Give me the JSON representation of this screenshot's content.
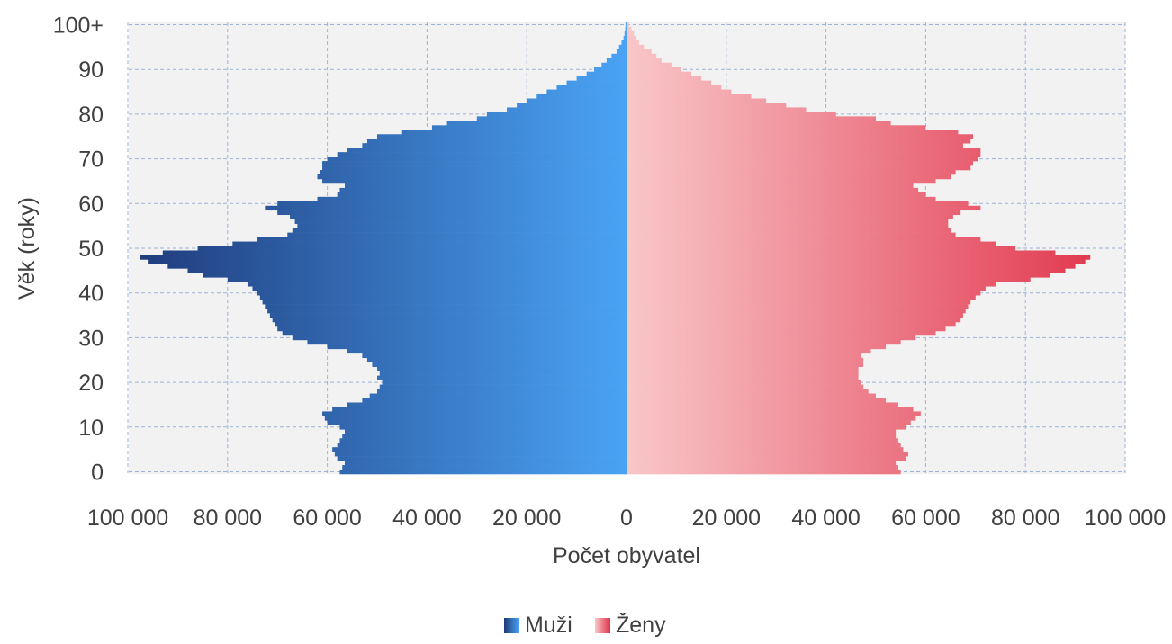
{
  "chart_data": {
    "type": "bar",
    "orientation": "horizontal",
    "subtype": "population-pyramid",
    "title": "",
    "xlabel": "Počet obyvatel",
    "ylabel": "Věk (roky)",
    "xlim": [
      -100000,
      100000
    ],
    "ylim": [
      0,
      100
    ],
    "x_tick_values": [
      -100000,
      -80000,
      -60000,
      -40000,
      -20000,
      0,
      20000,
      40000,
      60000,
      80000,
      100000
    ],
    "x_tick_labels": [
      "100 000",
      "80 000",
      "60 000",
      "40 000",
      "20 000",
      "0",
      "20 000",
      "40 000",
      "60 000",
      "80 000",
      "100 000"
    ],
    "y_tick_values": [
      0,
      10,
      20,
      30,
      40,
      50,
      60,
      70,
      80,
      90,
      100
    ],
    "y_tick_labels": [
      "0",
      "10",
      "20",
      "30",
      "40",
      "50",
      "60",
      "70",
      "80",
      "90",
      "100+"
    ],
    "grid": true,
    "legend_position": "bottom-center",
    "ages": [
      0,
      1,
      2,
      3,
      4,
      5,
      6,
      7,
      8,
      9,
      10,
      11,
      12,
      13,
      14,
      15,
      16,
      17,
      18,
      19,
      20,
      21,
      22,
      23,
      24,
      25,
      26,
      27,
      28,
      29,
      30,
      31,
      32,
      33,
      34,
      35,
      36,
      37,
      38,
      39,
      40,
      41,
      42,
      43,
      44,
      45,
      46,
      47,
      48,
      49,
      50,
      51,
      52,
      53,
      54,
      55,
      56,
      57,
      58,
      59,
      60,
      61,
      62,
      63,
      64,
      65,
      66,
      67,
      68,
      69,
      70,
      71,
      72,
      73,
      74,
      75,
      76,
      77,
      78,
      79,
      80,
      81,
      82,
      83,
      84,
      85,
      86,
      87,
      88,
      89,
      90,
      91,
      92,
      93,
      94,
      95,
      96,
      97,
      98,
      99,
      100
    ],
    "series": [
      {
        "name": "Muži",
        "color_dark": "#1f3a7a",
        "color_light": "#4aa3f5",
        "values": [
          57500,
          57000,
          56500,
          58000,
          58500,
          59000,
          58000,
          57500,
          57000,
          56500,
          57500,
          60000,
          60500,
          61000,
          59000,
          56000,
          53000,
          51500,
          50000,
          49500,
          49000,
          50000,
          49500,
          50000,
          51000,
          52000,
          53000,
          56000,
          60000,
          64000,
          67000,
          69000,
          70000,
          70500,
          71000,
          71500,
          72000,
          72500,
          73000,
          73500,
          74000,
          75000,
          76000,
          80000,
          85000,
          88000,
          92000,
          96000,
          97500,
          93000,
          86000,
          79000,
          74000,
          68000,
          67000,
          66000,
          66500,
          67500,
          70000,
          72500,
          70000,
          62000,
          58000,
          57500,
          56500,
          61000,
          62000,
          61500,
          61000,
          61000,
          60000,
          58000,
          56000,
          53000,
          52000,
          50000,
          45000,
          39000,
          36000,
          30000,
          28000,
          24000,
          22000,
          20000,
          18000,
          16000,
          14000,
          12000,
          10000,
          8000,
          6500,
          5000,
          4000,
          3000,
          2000,
          1500,
          1000,
          600,
          400,
          250,
          200
        ]
      },
      {
        "name": "Ženy",
        "color_light": "#f9c7c9",
        "color_dark": "#e03048",
        "values": [
          55000,
          54500,
          54000,
          56000,
          56500,
          55500,
          55000,
          54500,
          54000,
          54000,
          56000,
          57000,
          58000,
          59000,
          57500,
          54500,
          52000,
          50000,
          48500,
          47500,
          47000,
          46500,
          46500,
          46500,
          47500,
          47500,
          47000,
          49000,
          52000,
          55000,
          58000,
          62000,
          64000,
          66000,
          67000,
          67500,
          68000,
          68500,
          69000,
          70000,
          71000,
          72000,
          74000,
          81000,
          85000,
          88000,
          90000,
          92000,
          93000,
          86000,
          78000,
          74000,
          71000,
          66000,
          65000,
          64500,
          64500,
          65500,
          67000,
          71000,
          68500,
          62000,
          60000,
          58500,
          57500,
          62000,
          65000,
          66000,
          69000,
          69500,
          70500,
          71000,
          71000,
          67500,
          69000,
          69500,
          66500,
          60000,
          53000,
          50000,
          42000,
          36000,
          32000,
          28000,
          25000,
          21000,
          19000,
          17000,
          15000,
          13000,
          11000,
          9000,
          7000,
          6000,
          5000,
          3500,
          2500,
          2000,
          1500,
          1000,
          500
        ]
      }
    ]
  }
}
